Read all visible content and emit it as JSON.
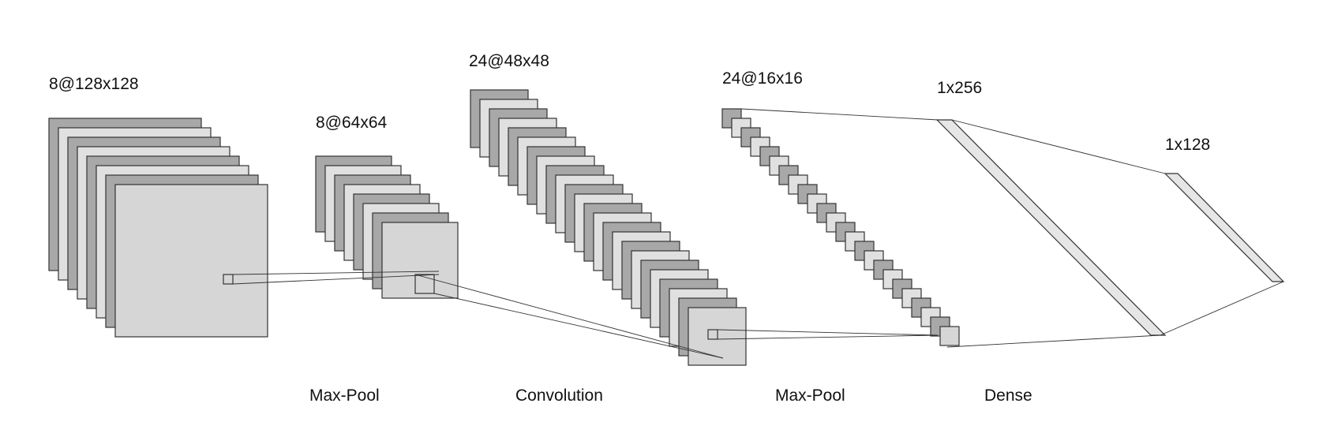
{
  "labels": {
    "layer1": "8@128x128",
    "layer2": "8@64x64",
    "layer3": "24@48x48",
    "layer4": "24@16x16",
    "layer5": "1x256",
    "layer6": "1x128"
  },
  "captions": {
    "op1": "Max-Pool",
    "op2": "Convolution",
    "op3": "Max-Pool",
    "op4": "Dense"
  },
  "colors": {
    "dark": "#a8a8a8",
    "light": "#e0e0e0",
    "front": "#d6d6d6",
    "stroke": "#333333",
    "dense": "#e6e6e6"
  }
}
